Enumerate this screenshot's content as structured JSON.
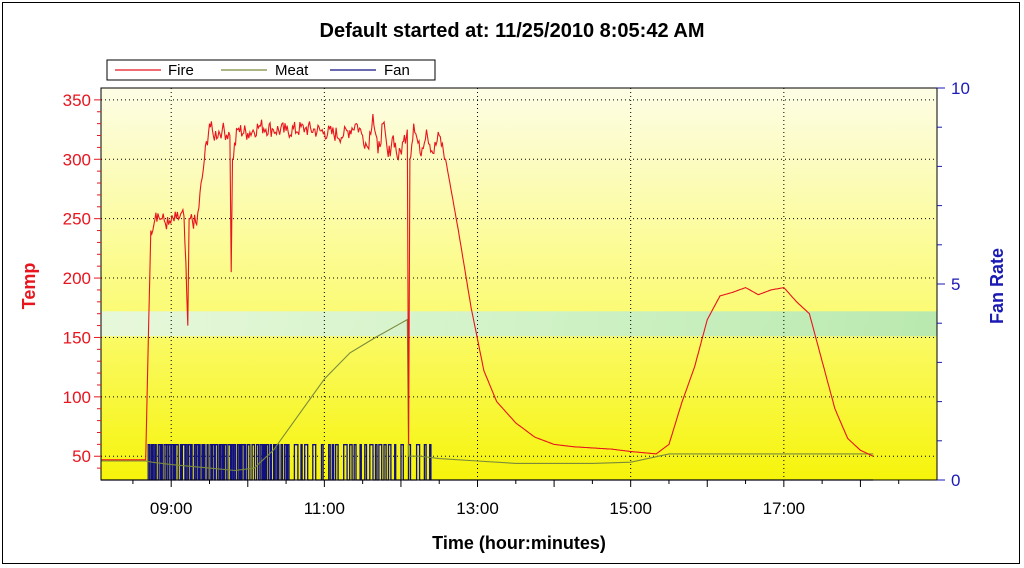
{
  "chart_data": {
    "type": "line",
    "title": "Default started at: 11/25/2010 8:05:42 AM",
    "xlabel": "Time (hour:minutes)",
    "ylabel": "Temp",
    "y2label": "Fan Rate",
    "xlim": [
      "8:05",
      "19:00"
    ],
    "ylim": [
      30,
      360
    ],
    "y2lim": [
      0,
      10
    ],
    "x_ticks": [
      "09:00",
      "11:00",
      "13:00",
      "15:00",
      "17:00"
    ],
    "y_ticks": [
      50,
      100,
      150,
      200,
      250,
      300,
      350
    ],
    "y2_ticks": [
      0,
      5,
      10
    ],
    "grid": true,
    "legend": {
      "placement": "top-left",
      "entries": [
        "Fire",
        "Meat",
        "Fan"
      ]
    },
    "target_band": {
      "from": 151,
      "to": 172
    },
    "colors": {
      "fire": "#e8141e",
      "meat": "#7a8a3a",
      "fan": "#101080",
      "band": "#bfeec0"
    },
    "series": [
      {
        "name": "Fire",
        "x": [
          "8:05",
          "8:40",
          "8:44",
          "8:48",
          "8:52",
          "8:58",
          "9:04",
          "9:10",
          "9:13",
          "9:14",
          "9:15",
          "9:20",
          "9:26",
          "9:30",
          "9:33",
          "9:40",
          "9:46",
          "9:47",
          "9:48",
          "9:52",
          "10:00",
          "10:10",
          "10:20",
          "10:30",
          "10:45",
          "11:00",
          "11:15",
          "11:25",
          "11:30",
          "11:34",
          "11:38",
          "11:42",
          "11:46",
          "11:50",
          "11:54",
          "11:58",
          "12:02",
          "12:05",
          "12:06",
          "12:07",
          "12:10",
          "12:15",
          "12:20",
          "12:25",
          "12:30",
          "12:35",
          "12:45",
          "12:55",
          "13:05",
          "13:15",
          "13:30",
          "13:45",
          "14:00",
          "14:15",
          "14:30",
          "14:45",
          "15:00",
          "15:10",
          "15:20",
          "15:30",
          "15:40",
          "15:50",
          "16:00",
          "16:10",
          "16:20",
          "16:30",
          "16:40",
          "16:50",
          "17:00",
          "17:10",
          "17:20",
          "17:30",
          "17:40",
          "17:50",
          "18:00",
          "18:10"
        ],
        "values": [
          47,
          47,
          240,
          255,
          250,
          245,
          250,
          252,
          160,
          250,
          250,
          245,
          300,
          330,
          320,
          325,
          320,
          205,
          300,
          325,
          322,
          328,
          325,
          324,
          326,
          323,
          320,
          330,
          320,
          310,
          338,
          305,
          330,
          302,
          320,
          300,
          315,
          325,
          60,
          300,
          330,
          305,
          325,
          305,
          320,
          300,
          240,
          175,
          122,
          96,
          78,
          66,
          60,
          58,
          57,
          56,
          54,
          53,
          52,
          60,
          95,
          125,
          165,
          185,
          188,
          192,
          186,
          190,
          192,
          180,
          170,
          130,
          90,
          65,
          55,
          50
        ]
      },
      {
        "name": "Meat",
        "x": [
          "8:05",
          "8:40",
          "8:45",
          "9:00",
          "9:30",
          "9:50",
          "10:05",
          "10:20",
          "10:40",
          "11:00",
          "11:20",
          "11:40",
          "12:00",
          "12:05",
          "12:06",
          "12:15",
          "12:30",
          "13:00",
          "13:30",
          "14:00",
          "14:30",
          "15:00",
          "15:30",
          "16:00",
          "17:00",
          "18:00",
          "18:10"
        ],
        "values": [
          46,
          46,
          45,
          43,
          40,
          38,
          40,
          55,
          85,
          115,
          137,
          150,
          162,
          165,
          50,
          50,
          48,
          46,
          44,
          44,
          44,
          45,
          52,
          52,
          52,
          52,
          52
        ]
      },
      {
        "name": "Fan",
        "x": [
          "8:05",
          "8:41",
          "8:42",
          "12:27",
          "12:28",
          "18:10"
        ],
        "values": [
          0,
          0,
          0.9,
          0.9,
          0,
          0
        ],
        "pattern": "rapid on/off cycling between 0 and 0.9 from 8:42 to 12:27"
      }
    ]
  }
}
